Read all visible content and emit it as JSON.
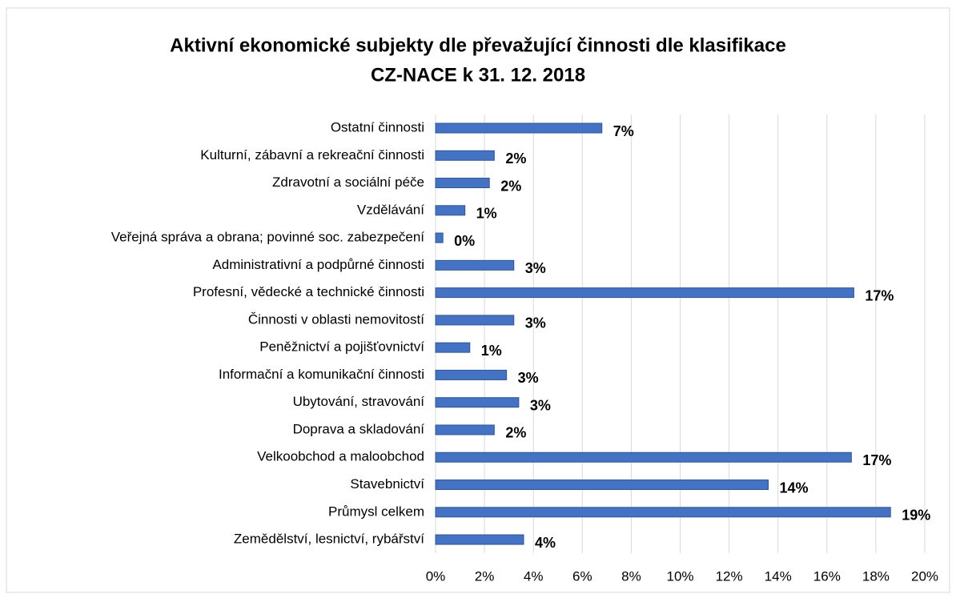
{
  "chart_data": {
    "type": "barh",
    "title": [
      "Aktivní ekonomické subjekty dle převažující činnosti dle klasifikace",
      "CZ-NACE k 31. 12. 2018"
    ],
    "categories": [
      "Ostatní činnosti",
      "Kulturní, zábavní a rekreační činnosti",
      "Zdravotní a sociální péče",
      "Vzdělávání",
      "Veřejná správa a obrana; povinné soc. zabezpečení",
      "Administrativní a podpůrné činnosti",
      "Profesní, vědecké a technické činnosti",
      "Činnosti v oblasti nemovitostí",
      "Peněžnictví a pojišťovnictví",
      "Informační a komunikační činnosti",
      "Ubytování, stravování",
      "Doprava a skladování",
      "Velkoobchod a maloobchod",
      "Stavebnictví",
      "Průmysl celkem",
      "Zemědělství, lesnictví, rybářství"
    ],
    "values": [
      6.8,
      2.4,
      2.2,
      1.2,
      0.3,
      3.2,
      17.1,
      3.2,
      1.4,
      2.9,
      3.4,
      2.4,
      17.0,
      13.6,
      18.6,
      3.6
    ],
    "value_labels": [
      "7%",
      "2%",
      "2%",
      "1%",
      "0%",
      "3%",
      "17%",
      "3%",
      "1%",
      "3%",
      "3%",
      "2%",
      "17%",
      "14%",
      "19%",
      "4%"
    ],
    "color": "#4472c4",
    "xlim": [
      0,
      20
    ],
    "xticks": [
      {
        "value": 0,
        "label": "0%"
      },
      {
        "value": 2,
        "label": "2%"
      },
      {
        "value": 4,
        "label": "4%"
      },
      {
        "value": 6,
        "label": "6%"
      },
      {
        "value": 8,
        "label": "8%"
      },
      {
        "value": 10,
        "label": "10%"
      },
      {
        "value": 12,
        "label": "12%"
      },
      {
        "value": 14,
        "label": "14%"
      },
      {
        "value": 16,
        "label": "16%"
      },
      {
        "value": 18,
        "label": "18%"
      },
      {
        "value": 20,
        "label": "20%"
      }
    ],
    "grid": true
  }
}
